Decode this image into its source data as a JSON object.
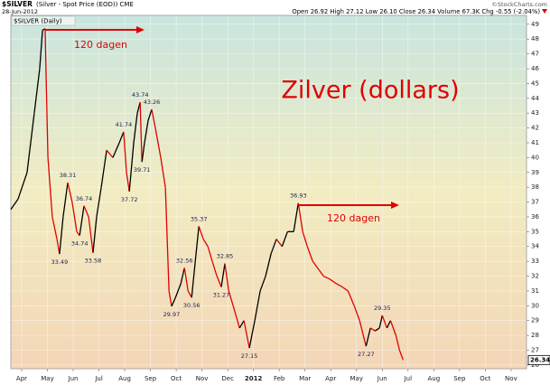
{
  "header": {
    "symbol": "$SILVER",
    "description": "(Silver - Spot Price (EOD)) CME",
    "date": "28-Jun-2012",
    "credit": "©StockCharts.com",
    "quote": "Open 26.92  High 27.12  Low 26.10  Close 26.34  Volume 67.3K  Chg -0.55 (-2.04%)"
  },
  "chart_data": {
    "type": "line",
    "title": "Zilver (dollars)",
    "legend": "$SILVER (Daily)",
    "arrow_labels": [
      "120 dagen",
      "120 dagen"
    ],
    "xlim": [
      -0.42,
      19.6
    ],
    "xticks": [
      {
        "value": 0,
        "label": "Apr"
      },
      {
        "value": 1,
        "label": "May"
      },
      {
        "value": 2,
        "label": "Jun"
      },
      {
        "value": 3,
        "label": "Jul"
      },
      {
        "value": 4,
        "label": "Aug"
      },
      {
        "value": 5,
        "label": "Sep"
      },
      {
        "value": 6,
        "label": "Oct"
      },
      {
        "value": 7,
        "label": "Nov"
      },
      {
        "value": 8,
        "label": "Dec"
      },
      {
        "value": 9,
        "label": "2012"
      },
      {
        "value": 10,
        "label": "Feb"
      },
      {
        "value": 11,
        "label": "Mar"
      },
      {
        "value": 12,
        "label": "Apr"
      },
      {
        "value": 13,
        "label": "May"
      },
      {
        "value": 14,
        "label": "Jun"
      },
      {
        "value": 15,
        "label": "Jul"
      },
      {
        "value": 16,
        "label": "Aug"
      },
      {
        "value": 17,
        "label": "Sep"
      },
      {
        "value": 18,
        "label": "Oct"
      },
      {
        "value": 19,
        "label": "Nov"
      }
    ],
    "ylim": [
      25.75,
      49.6
    ],
    "yticks": [
      26,
      27,
      28,
      29,
      30,
      31,
      32,
      33,
      34,
      35,
      36,
      37,
      38,
      39,
      40,
      41,
      42,
      43,
      44,
      45,
      46,
      47,
      48,
      49
    ],
    "grid": true,
    "up_color": "#000000",
    "down_color": "#e00000",
    "last_value": 26.34,
    "series": [
      {
        "name": "$SILVER",
        "x": [
          -0.42,
          -0.14,
          0.21,
          0.49,
          0.7,
          0.81,
          0.91,
          1.02,
          1.19,
          1.37,
          1.47,
          1.61,
          1.79,
          1.96,
          2.14,
          2.25,
          2.42,
          2.6,
          2.77,
          2.91,
          3.09,
          3.3,
          3.54,
          3.79,
          3.96,
          4.07,
          4.18,
          4.35,
          4.49,
          4.6,
          4.67,
          4.77,
          4.91,
          5.05,
          5.19,
          5.4,
          5.58,
          5.72,
          5.82,
          5.96,
          6.18,
          6.32,
          6.46,
          6.6,
          6.74,
          6.88,
          7.05,
          7.23,
          7.4,
          7.58,
          7.75,
          7.89,
          8.04,
          8.21,
          8.46,
          8.63,
          8.84,
          9.05,
          9.26,
          9.47,
          9.68,
          9.89,
          10.11,
          10.32,
          10.56,
          10.74,
          10.91,
          11.09,
          11.3,
          11.51,
          11.72,
          11.96,
          12.21,
          12.42,
          12.67,
          12.91,
          13.12,
          13.37,
          13.54,
          13.72,
          13.89,
          14.0,
          14.18,
          14.32,
          14.53,
          14.67,
          14.81
        ],
        "values": [
          36.5,
          37.2,
          39,
          43,
          46,
          48.6,
          48.7,
          40,
          36,
          34.5,
          33.49,
          36,
          38.31,
          37,
          35,
          34.74,
          36.74,
          36,
          33.58,
          36,
          38,
          40.5,
          40,
          41,
          41.74,
          39,
          37.72,
          41,
          43,
          43.74,
          39.71,
          41,
          42.5,
          43.26,
          42,
          40,
          38,
          31,
          29.97,
          30.5,
          31.5,
          32.56,
          31,
          30.56,
          33,
          35.37,
          34.5,
          34,
          33,
          32,
          31.27,
          32.85,
          31,
          30,
          28.5,
          29,
          27.15,
          29,
          31,
          32,
          33.5,
          34.5,
          34,
          35,
          35,
          36.93,
          35,
          34,
          33,
          32.5,
          32,
          31.8,
          31.5,
          31.3,
          31,
          30,
          29,
          27.27,
          28.5,
          28.3,
          28.5,
          29.35,
          28.5,
          29,
          28,
          27,
          26.34
        ]
      }
    ],
    "annotations": [
      {
        "x": 1.47,
        "value": 33.49,
        "kind": "trough"
      },
      {
        "x": 1.79,
        "value": 38.31,
        "kind": "peak"
      },
      {
        "x": 2.25,
        "value": 34.74,
        "kind": "trough"
      },
      {
        "x": 2.42,
        "value": 36.74,
        "kind": "peak"
      },
      {
        "x": 2.77,
        "value": 33.58,
        "kind": "trough"
      },
      {
        "x": 3.96,
        "value": 41.74,
        "kind": "peak"
      },
      {
        "x": 4.18,
        "value": 37.72,
        "kind": "trough"
      },
      {
        "x": 4.6,
        "value": 43.74,
        "kind": "peak"
      },
      {
        "x": 4.67,
        "value": 39.71,
        "kind": "trough"
      },
      {
        "x": 5.05,
        "value": 43.26,
        "kind": "peak"
      },
      {
        "x": 5.82,
        "value": 29.97,
        "kind": "trough"
      },
      {
        "x": 6.32,
        "value": 32.56,
        "kind": "peak"
      },
      {
        "x": 6.6,
        "value": 30.56,
        "kind": "trough"
      },
      {
        "x": 6.88,
        "value": 35.37,
        "kind": "peak"
      },
      {
        "x": 7.75,
        "value": 31.27,
        "kind": "trough"
      },
      {
        "x": 7.89,
        "value": 32.85,
        "kind": "peak"
      },
      {
        "x": 8.84,
        "value": 27.15,
        "kind": "trough"
      },
      {
        "x": 10.74,
        "value": 36.93,
        "kind": "peak"
      },
      {
        "x": 13.37,
        "value": 27.27,
        "kind": "trough"
      },
      {
        "x": 14.0,
        "value": 29.35,
        "kind": "peak"
      }
    ]
  }
}
